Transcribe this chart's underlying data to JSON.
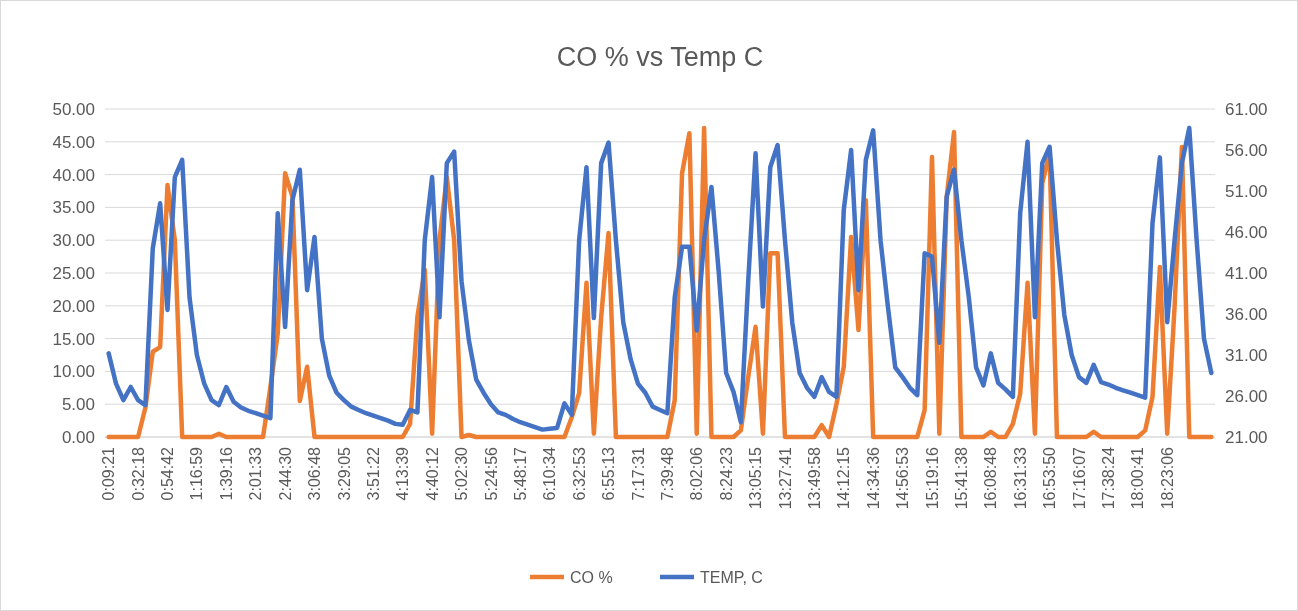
{
  "chart_data": {
    "type": "line",
    "title": "CO % vs Temp C",
    "categories": [
      "0:09:21",
      null,
      null,
      null,
      "0:32:18",
      null,
      null,
      null,
      "0:54:42",
      null,
      null,
      null,
      "1:16:59",
      null,
      null,
      null,
      "1:39:16",
      null,
      null,
      null,
      "2:01:33",
      null,
      null,
      null,
      "2:44:30",
      null,
      null,
      null,
      "3:06:48",
      null,
      null,
      null,
      "3:29:05",
      null,
      null,
      null,
      "3:51:22",
      null,
      null,
      null,
      "4:13:39",
      null,
      null,
      null,
      "4:40:12",
      null,
      null,
      null,
      "5:02:30",
      null,
      null,
      null,
      "5:24:56",
      null,
      null,
      null,
      "5:48:17",
      null,
      null,
      null,
      "6:10:34",
      null,
      null,
      null,
      "6:32:53",
      null,
      null,
      null,
      "6:55:13",
      null,
      null,
      null,
      "7:17:31",
      null,
      null,
      null,
      "7:39:48",
      null,
      null,
      null,
      "8:02:06",
      null,
      null,
      null,
      "8:24:23",
      null,
      null,
      null,
      "13:05:15",
      null,
      null,
      null,
      "13:27:41",
      null,
      null,
      null,
      "13:49:58",
      null,
      null,
      null,
      "14:12:15",
      null,
      null,
      null,
      "14:34:36",
      null,
      null,
      null,
      "14:56:53",
      null,
      null,
      null,
      "15:19:16",
      null,
      null,
      null,
      "15:41:38",
      null,
      null,
      null,
      "16:08:48",
      null,
      null,
      null,
      "16:31:33",
      null,
      null,
      null,
      "16:53:50",
      null,
      null,
      null,
      "17:16:07",
      null,
      null,
      null,
      "17:38:24",
      null,
      null,
      null,
      "18:00:41",
      null,
      null,
      null,
      "18:23:06",
      null,
      null,
      null,
      null,
      null,
      null
    ],
    "series": [
      {
        "name": "CO %",
        "color": "#ed7d31",
        "values": [
          0,
          0,
          0,
          0,
          0,
          4.5,
          13,
          13.7,
          38.4,
          30,
          0,
          0,
          0,
          0,
          0,
          0.5,
          0,
          0,
          0,
          0,
          0,
          0,
          7.6,
          15.8,
          40.2,
          36.6,
          5.5,
          10.7,
          0,
          0,
          0,
          0,
          0,
          0,
          0,
          0,
          0,
          0,
          0,
          0,
          0,
          2,
          18.3,
          25.5,
          0.5,
          30,
          39.6,
          30,
          0,
          0.3,
          0,
          0,
          0,
          0,
          0,
          0,
          0,
          0,
          0,
          0,
          0,
          0,
          0,
          3,
          6.7,
          23.5,
          0.5,
          18.3,
          31.1,
          0,
          0,
          0,
          0,
          0,
          0,
          0,
          0,
          5.6,
          40.2,
          46.3,
          0.5,
          47.1,
          0,
          0,
          0,
          0,
          1,
          9.1,
          16.8,
          0.5,
          28,
          28,
          0,
          0,
          0,
          0,
          0,
          1.8,
          0,
          5,
          10.7,
          30.5,
          16.3,
          36.1,
          0,
          0,
          0,
          0,
          0,
          0,
          0,
          4.1,
          42.7,
          0.5,
          36.6,
          46.5,
          0,
          0,
          0,
          0,
          0.8,
          0,
          0,
          2,
          6.6,
          23.5,
          0.5,
          38.7,
          43.3,
          0,
          0,
          0,
          0,
          0,
          0.8,
          0,
          0,
          0,
          0,
          0,
          0,
          1,
          6.1,
          25.9,
          0.5,
          19.8,
          44.2,
          0,
          0,
          0,
          0
        ]
      },
      {
        "name": "TEMP, C",
        "color": "#4472c4",
        "axis": "y2",
        "values": [
          31.2,
          27.5,
          25.5,
          27.1,
          25.5,
          24.9,
          44,
          49.5,
          36.5,
          52.7,
          54.8,
          38,
          31,
          27.5,
          25.5,
          24.9,
          27.1,
          25.3,
          24.6,
          24.2,
          23.9,
          23.6,
          23.3,
          48.3,
          34.4,
          49.9,
          53.6,
          38.9,
          45.4,
          33,
          28.5,
          26.4,
          25.5,
          24.7,
          24.3,
          23.9,
          23.6,
          23.3,
          23,
          22.6,
          22.5,
          24.3,
          24,
          45,
          52.7,
          35.6,
          54.4,
          55.8,
          40,
          32.8,
          28,
          26.4,
          25,
          24,
          23.7,
          23.2,
          22.8,
          22.5,
          22.2,
          21.9,
          22,
          22.1,
          25.1,
          23.7,
          45,
          53.9,
          35.5,
          54.4,
          56.9,
          45,
          35,
          30.5,
          27.5,
          26.4,
          24.7,
          24.3,
          23.9,
          38,
          44.2,
          44.2,
          34,
          45,
          51.5,
          41,
          28.8,
          26.5,
          22.8,
          40,
          55.6,
          36.9,
          53.9,
          56.6,
          45,
          34.9,
          28.8,
          27,
          25.9,
          28.3,
          26.5,
          25.9,
          48.7,
          56,
          38.9,
          54.8,
          58.4,
          45,
          36.9,
          29.5,
          28.3,
          27,
          26.1,
          43.4,
          43,
          32.5,
          50.3,
          53.6,
          45,
          38.1,
          29.5,
          27.3,
          31.2,
          27.6,
          26.8,
          25.9,
          48.3,
          57,
          35.6,
          54.4,
          56.4,
          45,
          35.9,
          31,
          28.3,
          27.6,
          29.8,
          27.7,
          27.4,
          27,
          26.7,
          26.4,
          26.1,
          25.8,
          47.1,
          55.1,
          35,
          45,
          54.4,
          58.7,
          45,
          33,
          28.8
        ]
      }
    ],
    "ylim": [
      0,
      50
    ],
    "yticks": [
      {
        "value": 0,
        "label": "0.00"
      },
      {
        "value": 5,
        "label": "5.00"
      },
      {
        "value": 10,
        "label": "10.00"
      },
      {
        "value": 15,
        "label": "15.00"
      },
      {
        "value": 20,
        "label": "20.00"
      },
      {
        "value": 25,
        "label": "25.00"
      },
      {
        "value": 30,
        "label": "30.00"
      },
      {
        "value": 35,
        "label": "35.00"
      },
      {
        "value": 40,
        "label": "40.00"
      },
      {
        "value": 45,
        "label": "45.00"
      },
      {
        "value": 50,
        "label": "50.00"
      }
    ],
    "y2lim": [
      21,
      61
    ],
    "y2ticks": [
      {
        "value": 21,
        "label": "21.00"
      },
      {
        "value": 26,
        "label": "26.00"
      },
      {
        "value": 31,
        "label": "31.00"
      },
      {
        "value": 36,
        "label": "36.00"
      },
      {
        "value": 41,
        "label": "41.00"
      },
      {
        "value": 46,
        "label": "46.00"
      },
      {
        "value": 51,
        "label": "51.00"
      },
      {
        "value": 56,
        "label": "56.00"
      },
      {
        "value": 61,
        "label": "61.00"
      }
    ],
    "grid": "y",
    "legend": "bottom",
    "marker": "none",
    "line_style": "solid"
  }
}
